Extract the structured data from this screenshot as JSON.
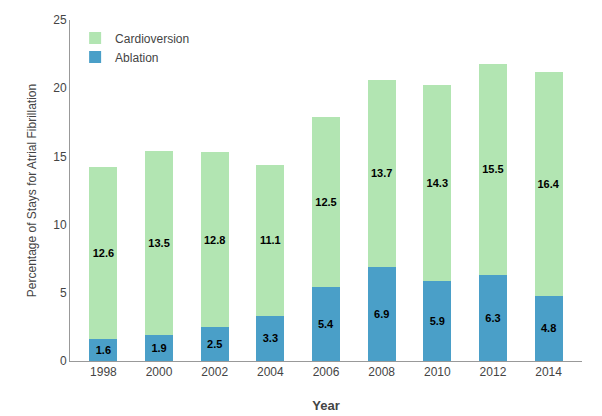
{
  "chart_data": {
    "type": "bar",
    "stacked": true,
    "categories": [
      "1998",
      "2000",
      "2002",
      "2004",
      "2006",
      "2008",
      "2010",
      "2012",
      "2014"
    ],
    "series": [
      {
        "name": "Ablation",
        "color": "#4a9fc8",
        "values": [
          1.6,
          1.9,
          2.5,
          3.3,
          5.4,
          6.9,
          5.9,
          6.3,
          4.8
        ]
      },
      {
        "name": "Cardioversion",
        "color": "#b2e5b2",
        "values": [
          12.6,
          13.5,
          12.8,
          11.1,
          12.5,
          13.7,
          14.3,
          15.5,
          16.4
        ]
      }
    ],
    "xlabel": "Year",
    "ylabel": "Percentage of Stays for Atrial Fibrillation",
    "ylim": [
      0,
      25
    ],
    "yticks": [
      0,
      5,
      10,
      15,
      20,
      25
    ],
    "grid": false,
    "legend": "upper left",
    "data_labels": true
  }
}
